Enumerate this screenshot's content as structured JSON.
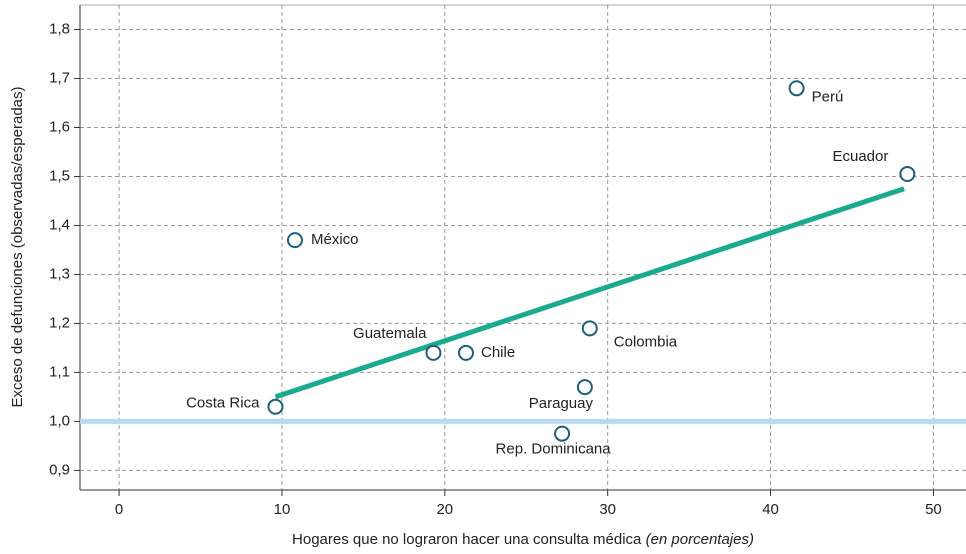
{
  "chart_data": {
    "type": "scatter",
    "x_label": "Hogares que no lograron hacer una consulta médica",
    "x_label_note": "(en porcentajes)",
    "y_label": "Exceso de defunciones (observadas/esperadas)",
    "xlim": [
      -2.4,
      52
    ],
    "ylim": [
      0.86,
      1.85
    ],
    "xticks": [
      0,
      10,
      20,
      30,
      40,
      50
    ],
    "yticks": [
      {
        "value": 0.9,
        "label": "0,9"
      },
      {
        "value": 1.0,
        "label": "1,0"
      },
      {
        "value": 1.1,
        "label": "1,1"
      },
      {
        "value": 1.2,
        "label": "1,2"
      },
      {
        "value": 1.3,
        "label": "1,3"
      },
      {
        "value": 1.4,
        "label": "1,4"
      },
      {
        "value": 1.5,
        "label": "1,5"
      },
      {
        "value": 1.6,
        "label": "1,6"
      },
      {
        "value": 1.7,
        "label": "1,7"
      },
      {
        "value": 1.8,
        "label": "1,8"
      }
    ],
    "grid": true,
    "color": "#1d5f7a",
    "labels": [
      "Costa Rica",
      "México",
      "Guatemala",
      "Chile",
      "Rep. Dominicana",
      "Paraguay",
      "Colombia",
      "Perú",
      "Ecuador"
    ],
    "x": [
      9.6,
      10.8,
      19.3,
      21.3,
      27.2,
      28.6,
      28.9,
      41.6,
      48.4
    ],
    "y": [
      1.03,
      1.37,
      1.14,
      1.14,
      0.975,
      1.07,
      1.19,
      1.68,
      1.505
    ],
    "trendline": {
      "x": [
        9.6,
        48.2
      ],
      "y": [
        1.05,
        1.475
      ],
      "color": "#1aab8e"
    },
    "reference_line": {
      "value": 1.0,
      "color": "#b9d9ec"
    }
  }
}
